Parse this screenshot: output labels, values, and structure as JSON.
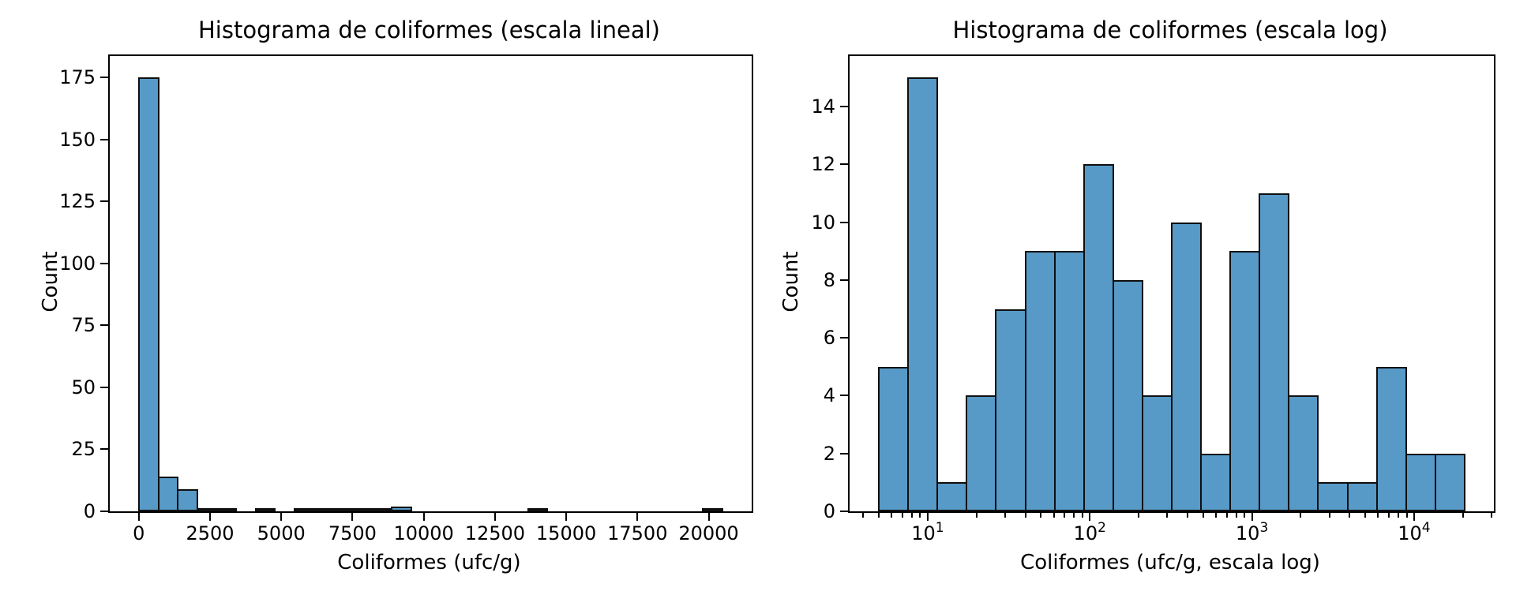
{
  "figure": {
    "background": "#ffffff"
  },
  "style": {
    "bar_fill": "#5799c7",
    "bar_edge": "#0f0f0f",
    "axis_color": "#000000",
    "text_color": "#000000"
  },
  "chart_data": [
    {
      "type": "bar",
      "subtype": "histogram",
      "title": "Histograma de coliformes (escala lineal)",
      "xlabel": "Coliformes (ufc/g)",
      "ylabel": "Count",
      "xscale": "linear",
      "xlim": [
        -1019,
        21509
      ],
      "ylim": [
        0,
        183.75
      ],
      "xticks": [
        0,
        2500,
        5000,
        7500,
        10000,
        12500,
        15000,
        17500,
        20000
      ],
      "xtick_labels": [
        "0",
        "2500",
        "5000",
        "7500",
        "10000",
        "12500",
        "15000",
        "17500",
        "20000"
      ],
      "yticks": [
        0,
        25,
        50,
        75,
        100,
        125,
        150,
        175
      ],
      "grid": false,
      "legend": null,
      "bins": {
        "start": 5,
        "width": 682.67,
        "n": 30
      },
      "counts": [
        175,
        14,
        9,
        1,
        1,
        0,
        1,
        0,
        1,
        1,
        1,
        1,
        1,
        2,
        0,
        0,
        0,
        0,
        0,
        0,
        1,
        0,
        0,
        0,
        0,
        0,
        0,
        0,
        0,
        1
      ]
    },
    {
      "type": "bar",
      "subtype": "histogram",
      "title": "Histograma de coliformes (escala log)",
      "xlabel": "Coliformes (ufc/g, escala log)",
      "ylabel": "Count",
      "xscale": "log",
      "xlim": [
        3.3,
        31050
      ],
      "ylim": [
        0,
        15.75
      ],
      "xticks": [
        10,
        100,
        1000,
        10000
      ],
      "xtick_exponents": [
        1,
        2,
        3,
        4
      ],
      "xtick_format": "power10",
      "yticks": [
        0,
        2,
        4,
        6,
        8,
        10,
        12,
        14
      ],
      "grid": false,
      "legend": null,
      "bins": {
        "log10_start": 0.69897,
        "log10_step": 0.1806285,
        "n": 20
      },
      "counts": [
        5,
        15,
        1,
        4,
        7,
        9,
        9,
        12,
        8,
        4,
        10,
        2,
        9,
        11,
        4,
        1,
        1,
        5,
        2,
        2
      ]
    }
  ]
}
